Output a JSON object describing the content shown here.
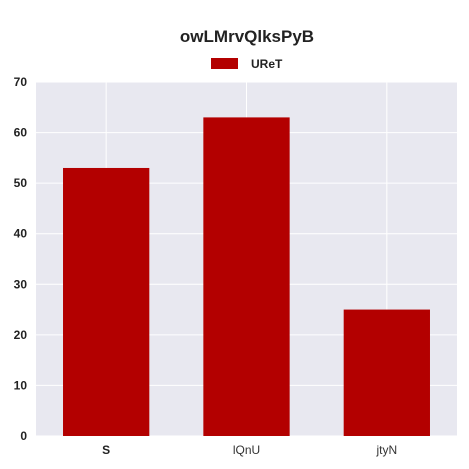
{
  "chart_data": {
    "type": "bar",
    "title": "owLMrvQlksPyB",
    "xlabel": "",
    "ylabel": "",
    "categories": [
      "S",
      "lQnU",
      "jtyN"
    ],
    "series": [
      {
        "name": "UReT",
        "values": [
          53,
          63,
          25
        ]
      }
    ],
    "ylim": [
      0,
      70
    ],
    "yticks": [
      0,
      10,
      20,
      30,
      40,
      50,
      60,
      70
    ],
    "grid": true,
    "legend_position": "top-center",
    "colors": {
      "bar": "#b30000",
      "plot_background": "#e8e8f0",
      "grid": "#ffffff"
    }
  }
}
